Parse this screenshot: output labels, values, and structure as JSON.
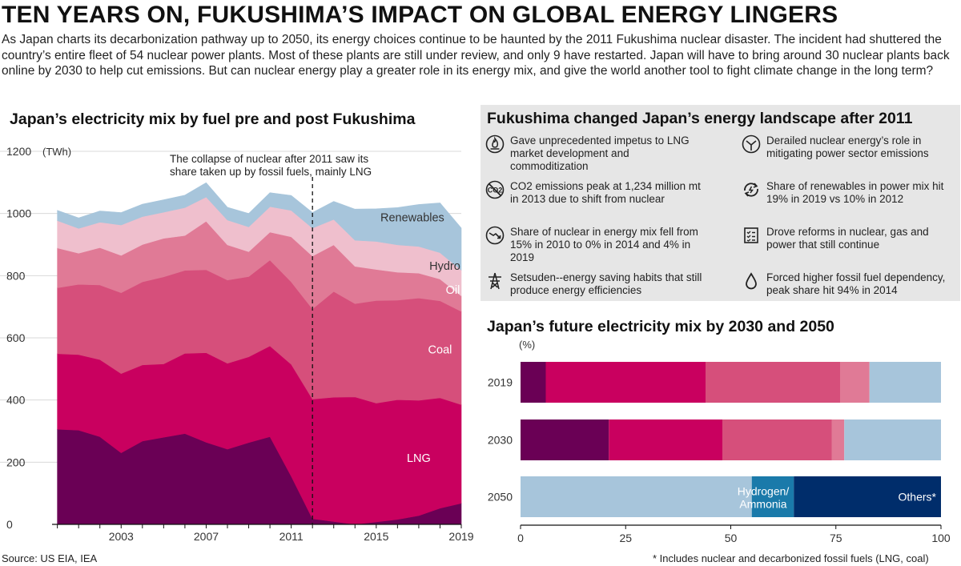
{
  "header": {
    "title": "TEN YEARS ON, FUKUSHIMA’S IMPACT ON GLOBAL ENERGY LINGERS",
    "intro": "As Japan charts its decarbonization pathway up to 2050, its energy choices continue to be haunted by the 2011 Fukushima nuclear disaster. The incident had shuttered the country’s entire fleet of 54 nuclear power plants. Most of these plants are still under review, and only 9 have restarted. Japan will have to bring around 30 nuclear plants back online by 2030 to help cut emissions. But can nuclear energy play a greater role in its energy mix, and give the world another tool to fight climate change in the long term?"
  },
  "facts_panel": {
    "title": "Fukushima changed Japan’s energy landscape after 2011",
    "items": [
      {
        "icon": "lng-flame-icon",
        "text": "Gave unprecedented impetus to LNG market development and commoditization"
      },
      {
        "icon": "emissions-gauge-icon",
        "text": "Derailed nuclear energy’s role in mitigating power sector emissions"
      },
      {
        "icon": "no-co2-icon",
        "text": "CO2 emissions peak at 1,234 million mt in 2013 due to shift from nuclear"
      },
      {
        "icon": "renewable-cycle-icon",
        "text": "Share of renewables in power mix hit 19% in 2019 vs 10% in 2012"
      },
      {
        "icon": "downtrend-icon",
        "text": "Share of nuclear in energy mix fell from 15% in 2010 to 0% in 2014 and 4% in 2019"
      },
      {
        "icon": "checklist-icon",
        "text": "Drove reforms in nuclear, gas and power that still continue"
      },
      {
        "icon": "transmission-tower-icon",
        "text": "Setsuden--energy saving habits that still produce energy efficiencies"
      },
      {
        "icon": "oil-drop-icon",
        "text": "Forced higher fossil fuel dependency, peak share hit 94% in 2014"
      }
    ]
  },
  "footer": {
    "source": "Source: US EIA, IEA",
    "note": "* Includes nuclear and decarbonized fossil fuels (LNG, coal)"
  },
  "chart_data": [
    {
      "type": "area",
      "stacked": true,
      "title": "Japan’s electricity mix by fuel pre and post Fukushima",
      "ylabel": "(TWh)",
      "xlabel": "",
      "ylim": [
        0,
        1200
      ],
      "yticks": [
        0,
        200,
        400,
        600,
        800,
        1000,
        1200
      ],
      "xtick_labels": [
        "2003",
        "2007",
        "2011",
        "2015",
        "2019"
      ],
      "x": [
        2000,
        2001,
        2002,
        2003,
        2004,
        2005,
        2006,
        2007,
        2008,
        2009,
        2010,
        2011,
        2012,
        2013,
        2014,
        2015,
        2016,
        2017,
        2018,
        2019
      ],
      "grid": true,
      "annotation": {
        "x": 2012,
        "text": "The collapse of nuclear after 2011 saw its share taken up by fossil fuels, mainly LNG"
      },
      "series": [
        {
          "name": "Nuclear",
          "color": "#6a0055",
          "label_color": "#ffffff",
          "values": [
            306,
            303,
            282,
            230,
            268,
            280,
            292,
            264,
            242,
            263,
            282,
            155,
            18,
            9,
            0,
            8,
            16,
            28,
            52,
            68
          ]
        },
        {
          "name": "LNG",
          "color": "#c9005f",
          "label_color": "#ffffff",
          "values": [
            243,
            243,
            248,
            255,
            245,
            236,
            258,
            288,
            276,
            276,
            292,
            360,
            385,
            400,
            410,
            382,
            385,
            371,
            355,
            317
          ]
        },
        {
          "name": "Coal",
          "color": "#d64f7b",
          "label_color": "#ffffff",
          "values": [
            212,
            226,
            240,
            260,
            267,
            280,
            267,
            267,
            268,
            258,
            276,
            265,
            290,
            340,
            300,
            330,
            320,
            329,
            312,
            300
          ]
        },
        {
          "name": "Oil",
          "color": "#e07a96",
          "label_color": "#ffffff",
          "values": [
            128,
            100,
            120,
            120,
            120,
            124,
            112,
            156,
            113,
            80,
            90,
            145,
            170,
            150,
            120,
            100,
            90,
            80,
            70,
            50
          ]
        },
        {
          "name": "Hydro",
          "color": "#efbfcd",
          "label_color": "#333333",
          "values": [
            88,
            80,
            82,
            98,
            90,
            84,
            90,
            78,
            80,
            80,
            82,
            85,
            90,
            82,
            84,
            90,
            88,
            86,
            85,
            83
          ]
        },
        {
          "name": "Renewables",
          "color": "#a7c5db",
          "label_color": "#333333",
          "values": [
            33,
            34,
            36,
            40,
            40,
            40,
            40,
            46,
            41,
            43,
            45,
            48,
            50,
            58,
            100,
            105,
            120,
            135,
            160,
            135
          ]
        }
      ]
    },
    {
      "type": "bar",
      "orientation": "horizontal",
      "stacked": true,
      "title": "Japan’s future electricity mix by 2030 and 2050",
      "ylabel": "(%)",
      "xlim": [
        0,
        100
      ],
      "xticks": [
        0,
        25,
        50,
        75,
        100
      ],
      "categories": [
        "2019",
        "2030",
        "2050"
      ],
      "series": [
        {
          "name": "Nuclear",
          "color": "#6a0055",
          "values": [
            6,
            21,
            0
          ]
        },
        {
          "name": "LNG",
          "color": "#c9005f",
          "values": [
            38,
            27,
            0
          ]
        },
        {
          "name": "Coal",
          "color": "#d64f7b",
          "values": [
            32,
            26,
            0
          ]
        },
        {
          "name": "Oil",
          "color": "#e07a96",
          "values": [
            7,
            3,
            0
          ]
        },
        {
          "name": "Renewables",
          "color": "#a7c5db",
          "values": [
            17,
            23,
            55
          ]
        },
        {
          "name": "Hydrogen/ Ammonia",
          "color": "#1a7aaa",
          "label_color": "#ffffff",
          "values": [
            0,
            0,
            10
          ]
        },
        {
          "name": "Others*",
          "color": "#002d6b",
          "label_color": "#ffffff",
          "values": [
            0,
            0,
            35
          ]
        }
      ],
      "segment_labels": [
        {
          "category": "2050",
          "series": "Hydrogen/ Ammonia",
          "lines": [
            "Hydrogen/",
            "Ammonia"
          ]
        },
        {
          "category": "2050",
          "series": "Others*",
          "lines": [
            "Others*"
          ]
        }
      ]
    }
  ]
}
